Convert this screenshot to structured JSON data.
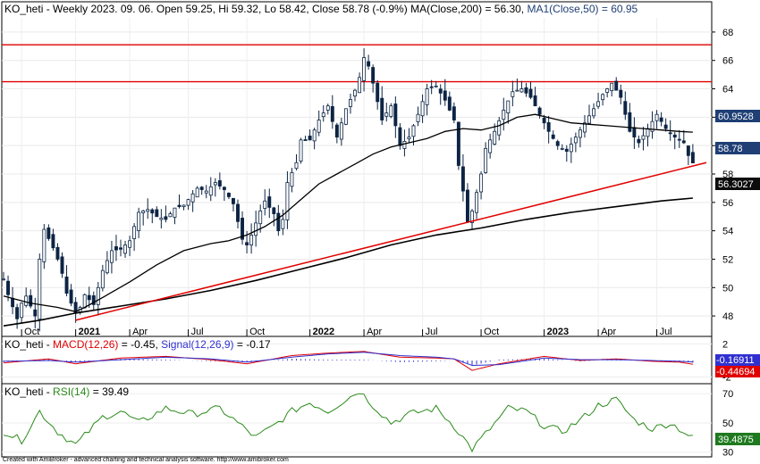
{
  "price_panel": {
    "symbol": "KO_heti",
    "title_text": "KO_heti - Weekly 2023. 09. 06. Open 59.25, Hi 59.32, Lo 58.42, Close 58.78 (-0.9%)",
    "ma200_label": "MA(Close,200) = 56.30,",
    "ma50_label": "MA1(Close,50) = 60.95",
    "badge_ma50": "60.9528",
    "badge_close": "58.78",
    "badge_ma200": "56.3027"
  },
  "macd_panel": {
    "prefix": "KO_heti -",
    "macd_label": "MACD(12,26)",
    "macd_value": "= -0.45,",
    "signal_label": "Signal(12,26,9)",
    "signal_value": "= -0.17",
    "badge_signal": "-0.16911",
    "badge_macd": "-0.44694"
  },
  "rsi_panel": {
    "prefix": "KO_heti -",
    "rsi_label": "RSI(14)",
    "rsi_value": "= 39.49",
    "badge_rsi": "39.4875"
  },
  "footer": "Created with AmiBroker - advanced charting and technical analysis software. http://www.amibroker.com",
  "colors": {
    "up_body": "#ffffff",
    "down_body": "#0c2444",
    "candle": "#0c2444",
    "resistance": "#e00000",
    "trendline": "#e00000",
    "ma": "#000000",
    "macd": "#3030d0",
    "signal": "#e00000",
    "rsi": "#2a8a1a",
    "badge_blue": "#1f3f75",
    "badge_green": "#1f7a1f"
  },
  "chart_data": {
    "type": "candlestick",
    "interval": "weekly",
    "x_ticks": [
      {
        "label": "Oct",
        "index": 4,
        "bold": false
      },
      {
        "label": "2021",
        "index": 16,
        "bold": true
      },
      {
        "label": "Apr",
        "index": 28,
        "bold": false
      },
      {
        "label": "Jul",
        "index": 41,
        "bold": false
      },
      {
        "label": "Oct",
        "index": 54,
        "bold": false
      },
      {
        "label": "2022",
        "index": 68,
        "bold": true
      },
      {
        "label": "Apr",
        "index": 80,
        "bold": false
      },
      {
        "label": "Jul",
        "index": 93,
        "bold": false
      },
      {
        "label": "Oct",
        "index": 106,
        "bold": false
      },
      {
        "label": "2023",
        "index": 120,
        "bold": true
      },
      {
        "label": "Apr",
        "index": 132,
        "bold": false
      },
      {
        "label": "Jul",
        "index": 145,
        "bold": false
      }
    ],
    "price_ylim": [
      47,
      69
    ],
    "price_yticks": [
      48,
      50,
      52,
      54,
      56,
      58,
      60,
      62,
      64,
      66,
      68
    ],
    "horizontal_lines": [
      67.1,
      64.5
    ],
    "trendline": {
      "from": {
        "index": 16,
        "value": 47.7
      },
      "to": {
        "index": 156,
        "value": 58.8
      }
    },
    "close_path": [
      [
        0,
        50.6
      ],
      [
        1,
        49.5
      ],
      [
        3,
        47.8
      ],
      [
        4,
        48.9
      ],
      [
        5,
        49.4
      ],
      [
        7,
        48.0
      ],
      [
        8,
        52.0
      ],
      [
        9,
        54.1
      ],
      [
        11,
        52.8
      ],
      [
        12,
        52.0
      ],
      [
        13,
        51.0
      ],
      [
        14,
        49.6
      ],
      [
        16,
        48.2
      ],
      [
        17,
        48.6
      ],
      [
        18,
        49.5
      ],
      [
        20,
        48.8
      ],
      [
        22,
        51.2
      ],
      [
        24,
        52.6
      ],
      [
        26,
        52.7
      ],
      [
        28,
        53.3
      ],
      [
        30,
        55.3
      ],
      [
        32,
        55.5
      ],
      [
        34,
        55.0
      ],
      [
        36,
        54.8
      ],
      [
        38,
        55.6
      ],
      [
        40,
        55.8
      ],
      [
        41,
        56.2
      ],
      [
        43,
        57.0
      ],
      [
        45,
        56.8
      ],
      [
        47,
        57.4
      ],
      [
        49,
        56.9
      ],
      [
        51,
        55.9
      ],
      [
        53,
        53.4
      ],
      [
        54,
        53.0
      ],
      [
        55,
        53.7
      ],
      [
        57,
        55.4
      ],
      [
        58,
        56.1
      ],
      [
        60,
        55.2
      ],
      [
        61,
        54.0
      ],
      [
        62,
        54.8
      ],
      [
        63,
        57.4
      ],
      [
        65,
        58.8
      ],
      [
        66,
        60.4
      ],
      [
        68,
        60.4
      ],
      [
        70,
        61.8
      ],
      [
        72,
        62.8
      ],
      [
        74,
        60.6
      ],
      [
        76,
        62.6
      ],
      [
        78,
        63.9
      ],
      [
        79,
        64.8
      ],
      [
        80,
        66.2
      ],
      [
        81,
        65.6
      ],
      [
        82,
        64.4
      ],
      [
        84,
        61.8
      ],
      [
        86,
        62.8
      ],
      [
        88,
        60.0
      ],
      [
        90,
        60.6
      ],
      [
        92,
        62.2
      ],
      [
        94,
        64.0
      ],
      [
        96,
        64.2
      ],
      [
        98,
        63.2
      ],
      [
        100,
        61.8
      ],
      [
        101,
        58.6
      ],
      [
        102,
        56.8
      ],
      [
        103,
        54.6
      ],
      [
        104,
        55.4
      ],
      [
        106,
        58.0
      ],
      [
        107,
        59.8
      ],
      [
        109,
        61.0
      ],
      [
        111,
        62.5
      ],
      [
        113,
        63.8
      ],
      [
        115,
        64.0
      ],
      [
        117,
        63.4
      ],
      [
        119,
        62.2
      ],
      [
        121,
        61.0
      ],
      [
        123,
        60.0
      ],
      [
        125,
        59.6
      ],
      [
        127,
        60.6
      ],
      [
        129,
        61.6
      ],
      [
        131,
        62.6
      ],
      [
        133,
        63.6
      ],
      [
        135,
        64.4
      ],
      [
        137,
        63.4
      ],
      [
        139,
        61.0
      ],
      [
        141,
        60.2
      ],
      [
        143,
        61.2
      ],
      [
        145,
        62.2
      ],
      [
        147,
        61.2
      ],
      [
        149,
        60.6
      ],
      [
        151,
        60.2
      ],
      [
        152,
        59.3
      ],
      [
        153,
        58.78
      ]
    ],
    "ma50": [
      [
        0,
        49.4
      ],
      [
        6,
        48.9
      ],
      [
        12,
        48.6
      ],
      [
        16,
        48.3
      ],
      [
        18,
        48.6
      ],
      [
        22,
        49.3
      ],
      [
        28,
        50.4
      ],
      [
        34,
        51.6
      ],
      [
        40,
        52.6
      ],
      [
        46,
        53.1
      ],
      [
        50,
        53.3
      ],
      [
        54,
        53.7
      ],
      [
        58,
        54.3
      ],
      [
        62,
        55.1
      ],
      [
        66,
        56.2
      ],
      [
        70,
        57.3
      ],
      [
        74,
        58.0
      ],
      [
        78,
        58.7
      ],
      [
        82,
        59.4
      ],
      [
        86,
        59.9
      ],
      [
        90,
        60.2
      ],
      [
        94,
        60.5
      ],
      [
        98,
        61.0
      ],
      [
        102,
        61.2
      ],
      [
        106,
        61.1
      ],
      [
        110,
        61.4
      ],
      [
        114,
        62.0
      ],
      [
        118,
        62.2
      ],
      [
        122,
        61.9
      ],
      [
        126,
        61.6
      ],
      [
        130,
        61.5
      ],
      [
        134,
        61.4
      ],
      [
        138,
        61.3
      ],
      [
        142,
        61.2
      ],
      [
        146,
        61.1
      ],
      [
        150,
        61.0
      ],
      [
        153,
        60.95
      ]
    ],
    "ma200": [
      [
        0,
        47.3
      ],
      [
        8,
        47.7
      ],
      [
        16,
        48.2
      ],
      [
        26,
        48.7
      ],
      [
        36,
        49.2
      ],
      [
        46,
        49.8
      ],
      [
        56,
        50.5
      ],
      [
        66,
        51.3
      ],
      [
        76,
        52.1
      ],
      [
        86,
        53.0
      ],
      [
        96,
        53.7
      ],
      [
        106,
        54.2
      ],
      [
        116,
        54.8
      ],
      [
        126,
        55.3
      ],
      [
        136,
        55.7
      ],
      [
        146,
        56.1
      ],
      [
        153,
        56.3
      ]
    ],
    "macd": {
      "ylim": [
        -2.6,
        2.6
      ],
      "yticks": [
        2,
        -2
      ],
      "macd": [
        [
          0,
          -0.3
        ],
        [
          10,
          0.2
        ],
        [
          16,
          -0.4
        ],
        [
          26,
          0.3
        ],
        [
          36,
          0.5
        ],
        [
          46,
          0.1
        ],
        [
          54,
          -0.4
        ],
        [
          64,
          0.6
        ],
        [
          72,
          0.9
        ],
        [
          80,
          1.1
        ],
        [
          88,
          0.4
        ],
        [
          96,
          0.3
        ],
        [
          100,
          0.2
        ],
        [
          104,
          -1.2
        ],
        [
          110,
          -0.4
        ],
        [
          120,
          0.5
        ],
        [
          128,
          0.0
        ],
        [
          136,
          0.2
        ],
        [
          144,
          -0.1
        ],
        [
          150,
          -0.2
        ],
        [
          153,
          -0.45
        ]
      ],
      "signal": [
        [
          0,
          -0.1
        ],
        [
          10,
          0.0
        ],
        [
          16,
          -0.2
        ],
        [
          26,
          0.1
        ],
        [
          36,
          0.4
        ],
        [
          46,
          0.2
        ],
        [
          54,
          -0.2
        ],
        [
          64,
          0.4
        ],
        [
          72,
          0.8
        ],
        [
          80,
          1.0
        ],
        [
          88,
          0.6
        ],
        [
          96,
          0.4
        ],
        [
          100,
          0.2
        ],
        [
          104,
          -0.6
        ],
        [
          110,
          -0.5
        ],
        [
          120,
          0.3
        ],
        [
          128,
          0.1
        ],
        [
          136,
          0.1
        ],
        [
          144,
          0.0
        ],
        [
          150,
          -0.1
        ],
        [
          153,
          -0.17
        ]
      ]
    },
    "rsi": {
      "ylim": [
        28,
        75
      ],
      "yticks": [
        70,
        50,
        30
      ],
      "values": [
        [
          0,
          44
        ],
        [
          4,
          38
        ],
        [
          8,
          58
        ],
        [
          12,
          44
        ],
        [
          16,
          35
        ],
        [
          22,
          54
        ],
        [
          26,
          58
        ],
        [
          30,
          50
        ],
        [
          36,
          60
        ],
        [
          42,
          56
        ],
        [
          48,
          60
        ],
        [
          52,
          50
        ],
        [
          56,
          40
        ],
        [
          60,
          48
        ],
        [
          64,
          58
        ],
        [
          68,
          64
        ],
        [
          72,
          58
        ],
        [
          76,
          66
        ],
        [
          79,
          72
        ],
        [
          82,
          62
        ],
        [
          86,
          50
        ],
        [
          90,
          56
        ],
        [
          96,
          60
        ],
        [
          100,
          48
        ],
        [
          104,
          32
        ],
        [
          108,
          46
        ],
        [
          112,
          60
        ],
        [
          116,
          58
        ],
        [
          120,
          48
        ],
        [
          124,
          44
        ],
        [
          128,
          52
        ],
        [
          132,
          62
        ],
        [
          136,
          66
        ],
        [
          140,
          52
        ],
        [
          144,
          46
        ],
        [
          148,
          50
        ],
        [
          151,
          44
        ],
        [
          153,
          39.49
        ]
      ]
    }
  }
}
